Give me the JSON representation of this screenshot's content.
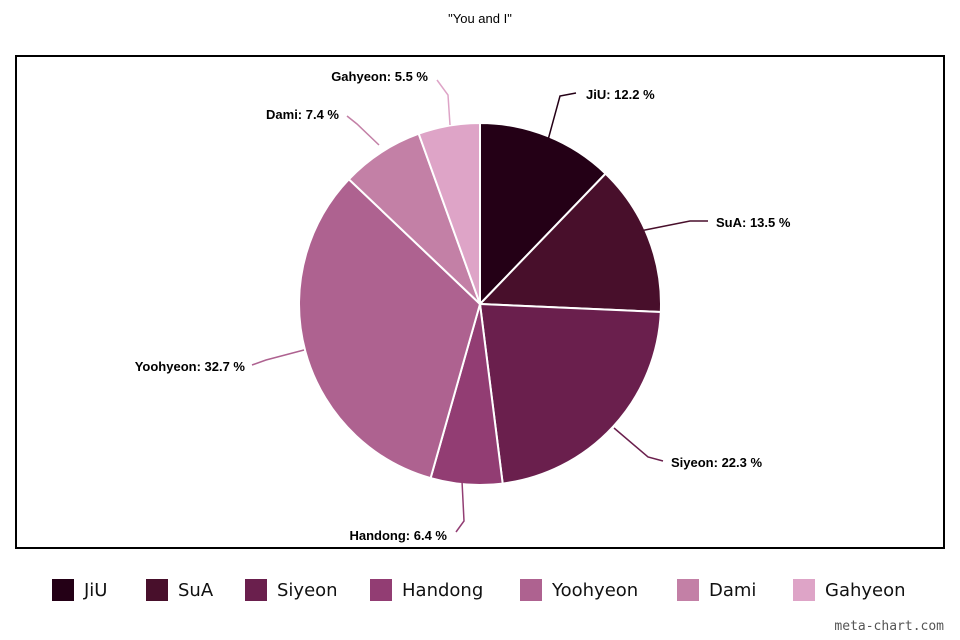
{
  "chart_data": {
    "type": "pie",
    "title": "\"You and I\"",
    "slices": [
      {
        "name": "JiU",
        "value": 12.2,
        "label": "JiU: 12.2 %",
        "color": "#240016"
      },
      {
        "name": "SuA",
        "value": 13.5,
        "label": "SuA: 13.5 %",
        "color": "#480f2b"
      },
      {
        "name": "Siyeon",
        "value": 22.3,
        "label": "Siyeon: 22.3 %",
        "color": "#6a1f4d"
      },
      {
        "name": "Handong",
        "value": 6.4,
        "label": "Handong: 6.4 %",
        "color": "#923d73"
      },
      {
        "name": "Yoohyeon",
        "value": 32.7,
        "label": "Yoohyeon: 32.7 %",
        "color": "#ae6290"
      },
      {
        "name": "Dami",
        "value": 7.4,
        "label": "Dami: 7.4 %",
        "color": "#c380a6"
      },
      {
        "name": "Gahyeon",
        "value": 5.5,
        "label": "Gahyeon: 5.5 %",
        "color": "#dea4c7"
      }
    ],
    "legend_position": "bottom",
    "slice_border_color": "#ffffff"
  },
  "watermark": "meta-chart.com"
}
